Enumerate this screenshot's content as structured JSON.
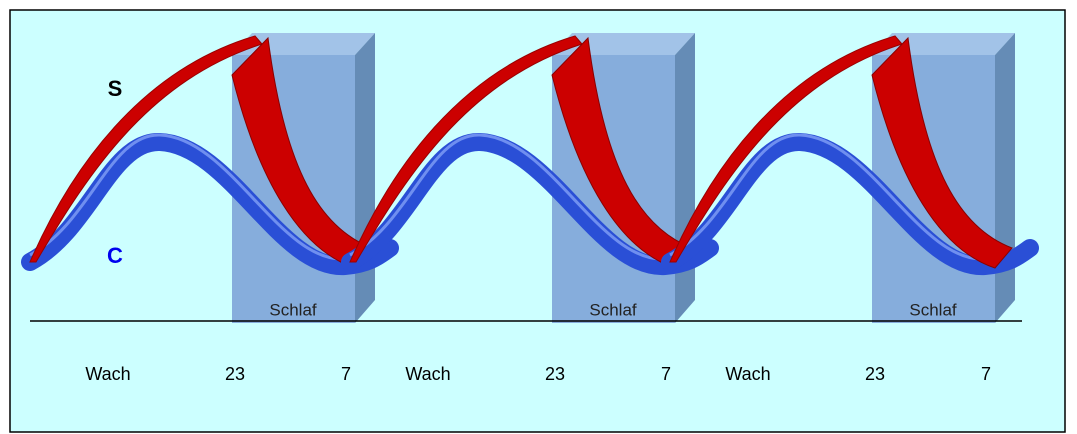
{
  "process_labels": {
    "s": "S",
    "c": "C"
  },
  "cycles": [
    {
      "wake": "Wach",
      "sleep_start": "23",
      "sleep_end": "7",
      "sleep_label": "Schlaf"
    },
    {
      "wake": "Wach",
      "sleep_start": "23",
      "sleep_end": "7",
      "sleep_label": "Schlaf"
    },
    {
      "wake": "Wach",
      "sleep_start": "23",
      "sleep_end": "7",
      "sleep_label": "Schlaf"
    }
  ]
}
